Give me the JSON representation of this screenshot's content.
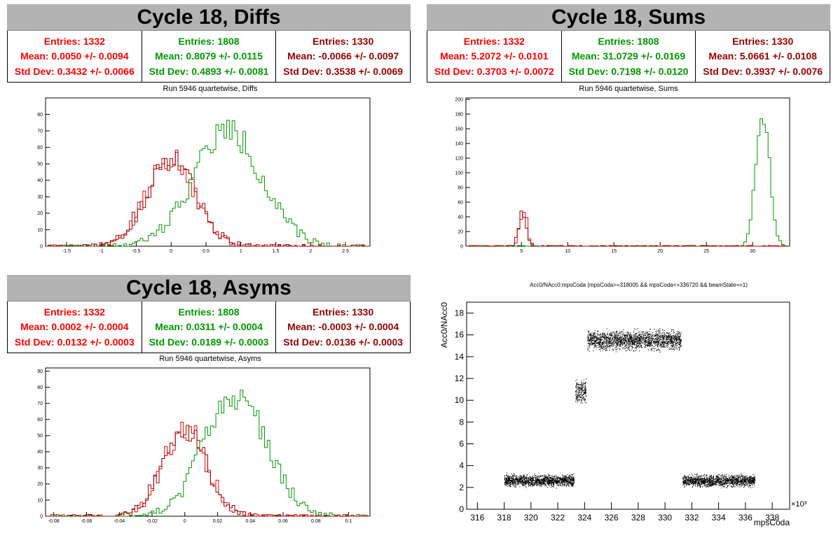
{
  "colors": {
    "red": "#ff0000",
    "green": "#009900",
    "dark_red": "#990000"
  },
  "panels": [
    {
      "title": "Cycle 18, Diffs",
      "subtitle": "Run 5946 quartetwise, Diffs",
      "stats": [
        {
          "entries": "Entries: 1332",
          "mean": "Mean: 0.0050 +/- 0.0094",
          "std": "Std Dev: 0.3432 +/- 0.0066"
        },
        {
          "entries": "Entries: 1808",
          "mean": "Mean: 0.8079 +/- 0.0115",
          "std": "Std Dev: 0.4893 +/- 0.0081"
        },
        {
          "entries": "Entries: 1330",
          "mean": "Mean: -0.0066 +/- 0.0097",
          "std": "Std Dev: 0.3538 +/- 0.0069"
        }
      ]
    },
    {
      "title": "Cycle 18, Sums",
      "subtitle": "Run 5946 quartetwise, Sums",
      "stats": [
        {
          "entries": "Entries: 1332",
          "mean": "Mean: 5.2072 +/- 0.0101",
          "std": "Std Dev: 0.3703 +/- 0.0072"
        },
        {
          "entries": "Entries: 1808",
          "mean": "Mean: 31.0729 +/- 0.0169",
          "std": "Std Dev: 0.7198 +/- 0.0120"
        },
        {
          "entries": "Entries: 1330",
          "mean": "Mean: 5.0661 +/- 0.0108",
          "std": "Std Dev: 0.3937 +/- 0.0076"
        }
      ]
    },
    {
      "title": "Cycle 18, Asyms",
      "subtitle": "Run 5946 quartetwise, Asyms",
      "stats": [
        {
          "entries": "Entries: 1332",
          "mean": "Mean: 0.0002 +/- 0.0004",
          "std": "Std Dev: 0.0132 +/- 0.0003"
        },
        {
          "entries": "Entries: 1808",
          "mean": "Mean: 0.0311 +/- 0.0004",
          "std": "Std Dev: 0.0189 +/- 0.0003"
        },
        {
          "entries": "Entries: 1330",
          "mean": "Mean: -0.0003 +/- 0.0004",
          "std": "Std Dev: 0.0136 +/- 0.0003"
        }
      ]
    }
  ],
  "chart_data": [
    {
      "type": "histogram",
      "xlim": [
        -1.8,
        2.85
      ],
      "ylim": [
        0,
        90
      ],
      "xticks": [
        -1.5,
        -1,
        -0.5,
        0,
        0.5,
        1,
        1.5,
        2,
        2.5
      ],
      "xtick_labels": [
        "-1.5",
        "-1",
        "-0.5",
        "0",
        "0.5",
        "1",
        "1.5",
        "2",
        "2.5"
      ],
      "yticks": [
        0,
        10,
        20,
        30,
        40,
        50,
        60,
        70,
        80
      ],
      "ytick_labels": [
        "0",
        "10",
        "20",
        "30",
        "40",
        "50",
        "60",
        "70",
        "80"
      ],
      "series": [
        {
          "color": "red",
          "mean": 0.005,
          "std": 0.3432,
          "peak": 55
        },
        {
          "color": "green",
          "mean": 0.8079,
          "std": 0.4893,
          "peak": 70
        },
        {
          "color": "dark_red",
          "mean": -0.0066,
          "std": 0.3538,
          "peak": 52
        }
      ]
    },
    {
      "type": "histogram",
      "xlim": [
        -1,
        34
      ],
      "ylim": [
        0,
        202
      ],
      "xticks": [
        5,
        10,
        15,
        20,
        25,
        30
      ],
      "xtick_labels": [
        "5",
        "10",
        "15",
        "20",
        "25",
        "30"
      ],
      "yticks": [
        0,
        20,
        40,
        60,
        80,
        100,
        120,
        140,
        160,
        180,
        200
      ],
      "ytick_labels": [
        "0",
        "20",
        "40",
        "60",
        "80",
        "100",
        "120",
        "140",
        "160",
        "180",
        "200"
      ],
      "series": [
        {
          "color": "red",
          "mean": 5.2072,
          "std": 0.3703,
          "peak": 52
        },
        {
          "color": "green",
          "mean": 31.0729,
          "std": 0.7198,
          "peak": 185
        },
        {
          "color": "dark_red",
          "mean": 5.0661,
          "std": 0.3937,
          "peak": 48
        }
      ]
    },
    {
      "type": "histogram",
      "xlim": [
        -0.085,
        0.113
      ],
      "ylim": [
        0,
        92
      ],
      "xticks": [
        -0.08,
        -0.06,
        -0.04,
        -0.02,
        0,
        0.02,
        0.04,
        0.06,
        0.08,
        0.1
      ],
      "xtick_labels": [
        "-0.08",
        "-0.06",
        "-0.04",
        "-0.02",
        "0",
        "0.02",
        "0.04",
        "0.06",
        "0.08",
        "0.1"
      ],
      "yticks": [
        0,
        10,
        20,
        30,
        40,
        50,
        60,
        70,
        80,
        90
      ],
      "ytick_labels": [
        "0",
        "10",
        "20",
        "30",
        "40",
        "50",
        "60",
        "70",
        "80",
        "90"
      ],
      "series": [
        {
          "color": "red",
          "mean": 0.0002,
          "std": 0.0132,
          "peak": 55
        },
        {
          "color": "green",
          "mean": 0.0311,
          "std": 0.0189,
          "peak": 75
        },
        {
          "color": "dark_red",
          "mean": -0.0003,
          "std": 0.0136,
          "peak": 53
        }
      ]
    },
    {
      "type": "scatter",
      "title": "Acc0/NAcc0:mpsCoda (mpsCoda>=318005 && mpsCoda<=336720 && beamState==1)",
      "xlabel": "mpsCoda",
      "ylabel": "Acc0/NAcc0",
      "x_exponent": "×10³",
      "xlim": [
        315.2,
        339.3
      ],
      "ylim": [
        0,
        19
      ],
      "xticks": [
        316,
        318,
        320,
        322,
        324,
        326,
        328,
        330,
        332,
        334,
        336,
        338
      ],
      "xtick_labels": [
        "316",
        "318",
        "320",
        "322",
        "324",
        "326",
        "328",
        "330",
        "332",
        "334",
        "336",
        "338"
      ],
      "yticks": [
        0,
        2,
        4,
        6,
        8,
        10,
        12,
        14,
        16,
        18
      ],
      "ytick_labels": [
        "0",
        "2",
        "4",
        "6",
        "8",
        "10",
        "12",
        "14",
        "16",
        "18"
      ],
      "bands": [
        {
          "x": [
            318.0,
            323.2
          ],
          "y": 2.6,
          "spread": 0.25
        },
        {
          "x": [
            323.3,
            324.1
          ],
          "y": 10.8,
          "spread": 0.45
        },
        {
          "x": [
            324.2,
            331.2
          ],
          "y": 15.5,
          "spread": 0.4
        },
        {
          "x": [
            331.3,
            336.7
          ],
          "y": 2.6,
          "spread": 0.25
        }
      ]
    }
  ]
}
